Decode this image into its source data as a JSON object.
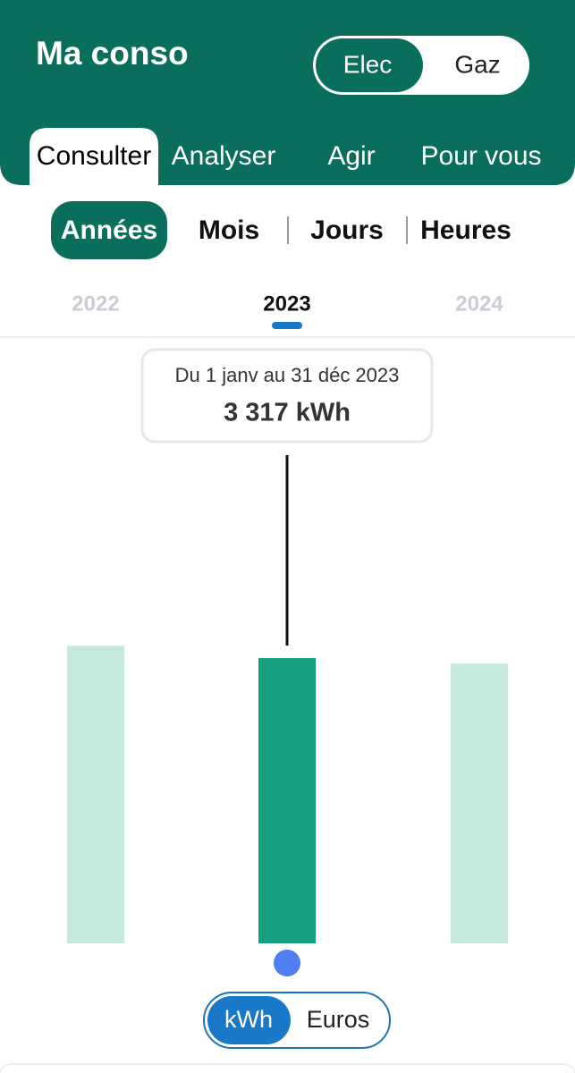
{
  "header": {
    "title": "Ma conso",
    "energy_toggle": [
      "Elec",
      "Gaz"
    ]
  },
  "tabs": [
    "Consulter",
    "Analyser",
    "Agir",
    "Pour vous"
  ],
  "periods": [
    "Années",
    "Mois",
    "Jours",
    "Heures"
  ],
  "unit_toggle": [
    "kWh",
    "Euros"
  ],
  "chart_data": {
    "type": "bar",
    "categories": [
      "2022",
      "2023",
      "2024"
    ],
    "values": [
      3460,
      3317,
      3255
    ],
    "value_labels": [
      null,
      "3 317 kWh",
      null
    ],
    "periods_labels": [
      null,
      "Du 1 janv au 31 déc 2023",
      null
    ],
    "colors": [
      "#c5e8df",
      "#17a07f",
      "#c5e8df"
    ]
  }
}
